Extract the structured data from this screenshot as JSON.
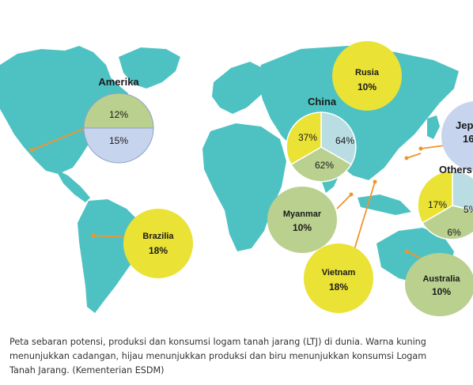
{
  "regions": {
    "amerika": {
      "name": "Amerika",
      "production": "12%",
      "consumption": "15%"
    },
    "rusia": {
      "name": "Rusia",
      "reserve": "10%"
    },
    "china": {
      "name": "China",
      "reserve": "37%",
      "consumption": "64%",
      "production": "62%"
    },
    "jepang": {
      "name": "Jep",
      "consumption": "16"
    },
    "others": {
      "name": "Others",
      "reserve": "17%",
      "consumption": "5%",
      "production": "6%"
    },
    "myanmar": {
      "name": "Myanmar",
      "production": "10%"
    },
    "brazilia": {
      "name": "Brazilia",
      "reserve": "18%"
    },
    "vietnam": {
      "name": "Vietnam",
      "reserve": "18%"
    },
    "australia": {
      "name": "Australia",
      "production": "10%"
    }
  },
  "colors": {
    "land": "#4ec2c2",
    "reserve": "#eae234",
    "production": "#b9d08e",
    "consumption": "#c6d4ee",
    "leader": "#f0952b"
  },
  "caption": "Peta sebaran potensi, produksi dan konsumsi logam tanah jarang (LTJ) di dunia. Warna kuning\nmenunjukkan cadangan, hijau menunjukkan produksi dan biru menunjukkan konsumsi Logam\nTanah Jarang. (Kementerian ESDM)"
}
